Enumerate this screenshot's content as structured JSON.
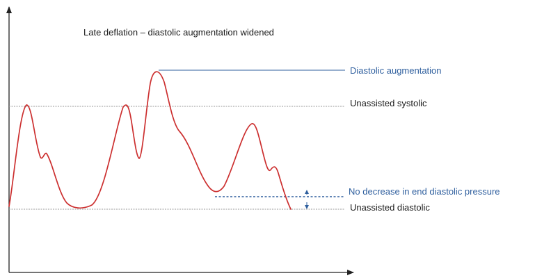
{
  "title": "Late deflation – diastolic augmentation widened",
  "labels": {
    "diastolic_augmentation": "Diastolic augmentation",
    "unassisted_systolic": "Unassisted systolic",
    "no_decrease": "No decrease in end diastolic pressure",
    "unassisted_diastolic": "Unassisted diastolic"
  },
  "colors": {
    "waveform": "#cc2f2f",
    "reference_line": "#9a9a9a",
    "annotation": "#2f5f9e",
    "axis": "#222222",
    "text": "#1a1a1a"
  }
}
